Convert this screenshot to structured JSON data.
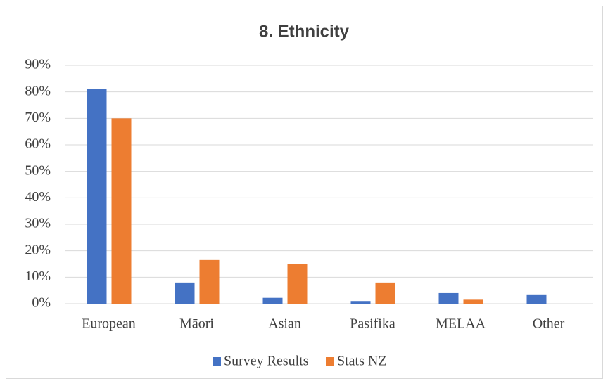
{
  "chart_data": {
    "type": "bar",
    "title": "8. Ethnicity",
    "categories": [
      "European",
      "Māori",
      "Asian",
      "Pasifika",
      "MELAA",
      "Other"
    ],
    "series": [
      {
        "name": "Survey Results",
        "color": "#4472c4",
        "values": [
          81,
          8,
          2.2,
          1,
          4,
          3.5
        ]
      },
      {
        "name": "Stats NZ",
        "color": "#ed7d31",
        "values": [
          70,
          16.5,
          15,
          8,
          1.5,
          null
        ]
      }
    ],
    "ylim": [
      0,
      90
    ],
    "yticks": [
      {
        "value": 0,
        "label": "0%"
      },
      {
        "value": 10,
        "label": "10%"
      },
      {
        "value": 20,
        "label": "20%"
      },
      {
        "value": 30,
        "label": "30%"
      },
      {
        "value": 40,
        "label": "40%"
      },
      {
        "value": 50,
        "label": "50%"
      },
      {
        "value": 60,
        "label": "60%"
      },
      {
        "value": 70,
        "label": "70%"
      },
      {
        "value": 80,
        "label": "80%"
      },
      {
        "value": 90,
        "label": "90%"
      }
    ],
    "grid": true,
    "legend": "bottom"
  }
}
